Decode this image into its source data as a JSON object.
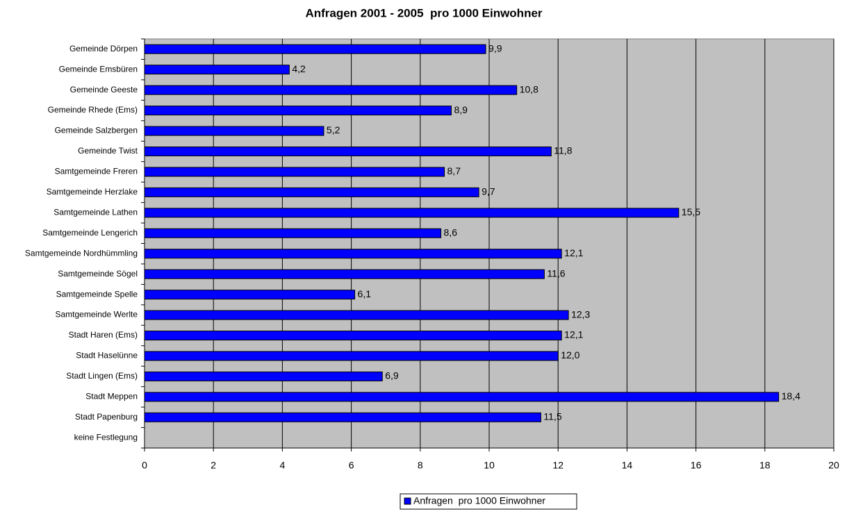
{
  "chart_data": {
    "type": "bar",
    "orientation": "horizontal",
    "title": "Anfragen 2001 - 2005  pro 1000 Einwohner",
    "categories": [
      "Gemeinde Dörpen",
      "Gemeinde Emsbüren",
      "Gemeinde Geeste",
      "Gemeinde Rhede (Ems)",
      "Gemeinde Salzbergen",
      "Gemeinde Twist",
      "Samtgemeinde Freren",
      "Samtgemeinde Herzlake",
      "Samtgemeinde Lathen",
      "Samtgemeinde Lengerich",
      "Samtgemeinde Nordhümmling",
      "Samtgemeinde Sögel",
      "Samtgemeinde Spelle",
      "Samtgemeinde Werlte",
      "Stadt Haren (Ems)",
      "Stadt Haselünne",
      "Stadt Lingen (Ems)",
      "Stadt Meppen",
      "Stadt Papenburg",
      "keine Festlegung"
    ],
    "series": [
      {
        "name": "Anfragen  pro 1000 Einwohner",
        "color": "#0000ff",
        "values": [
          9.9,
          4.2,
          10.8,
          8.9,
          5.2,
          11.8,
          8.7,
          9.7,
          15.5,
          8.6,
          12.1,
          11.6,
          6.1,
          12.3,
          12.1,
          12.0,
          6.9,
          18.4,
          11.5,
          null
        ],
        "value_labels": [
          "9,9",
          "4,2",
          "10,8",
          "8,9",
          "5,2",
          "11,8",
          "8,7",
          "9,7",
          "15,5",
          "8,6",
          "12,1",
          "11,6",
          "6,1",
          "12,3",
          "12,1",
          "12,0",
          "6,9",
          "18,4",
          "11,5",
          null
        ]
      }
    ],
    "xlim": [
      0,
      20
    ],
    "xticks": [
      0,
      2,
      4,
      6,
      8,
      10,
      12,
      14,
      16,
      18,
      20
    ],
    "grid": true,
    "legend": "bottom"
  }
}
